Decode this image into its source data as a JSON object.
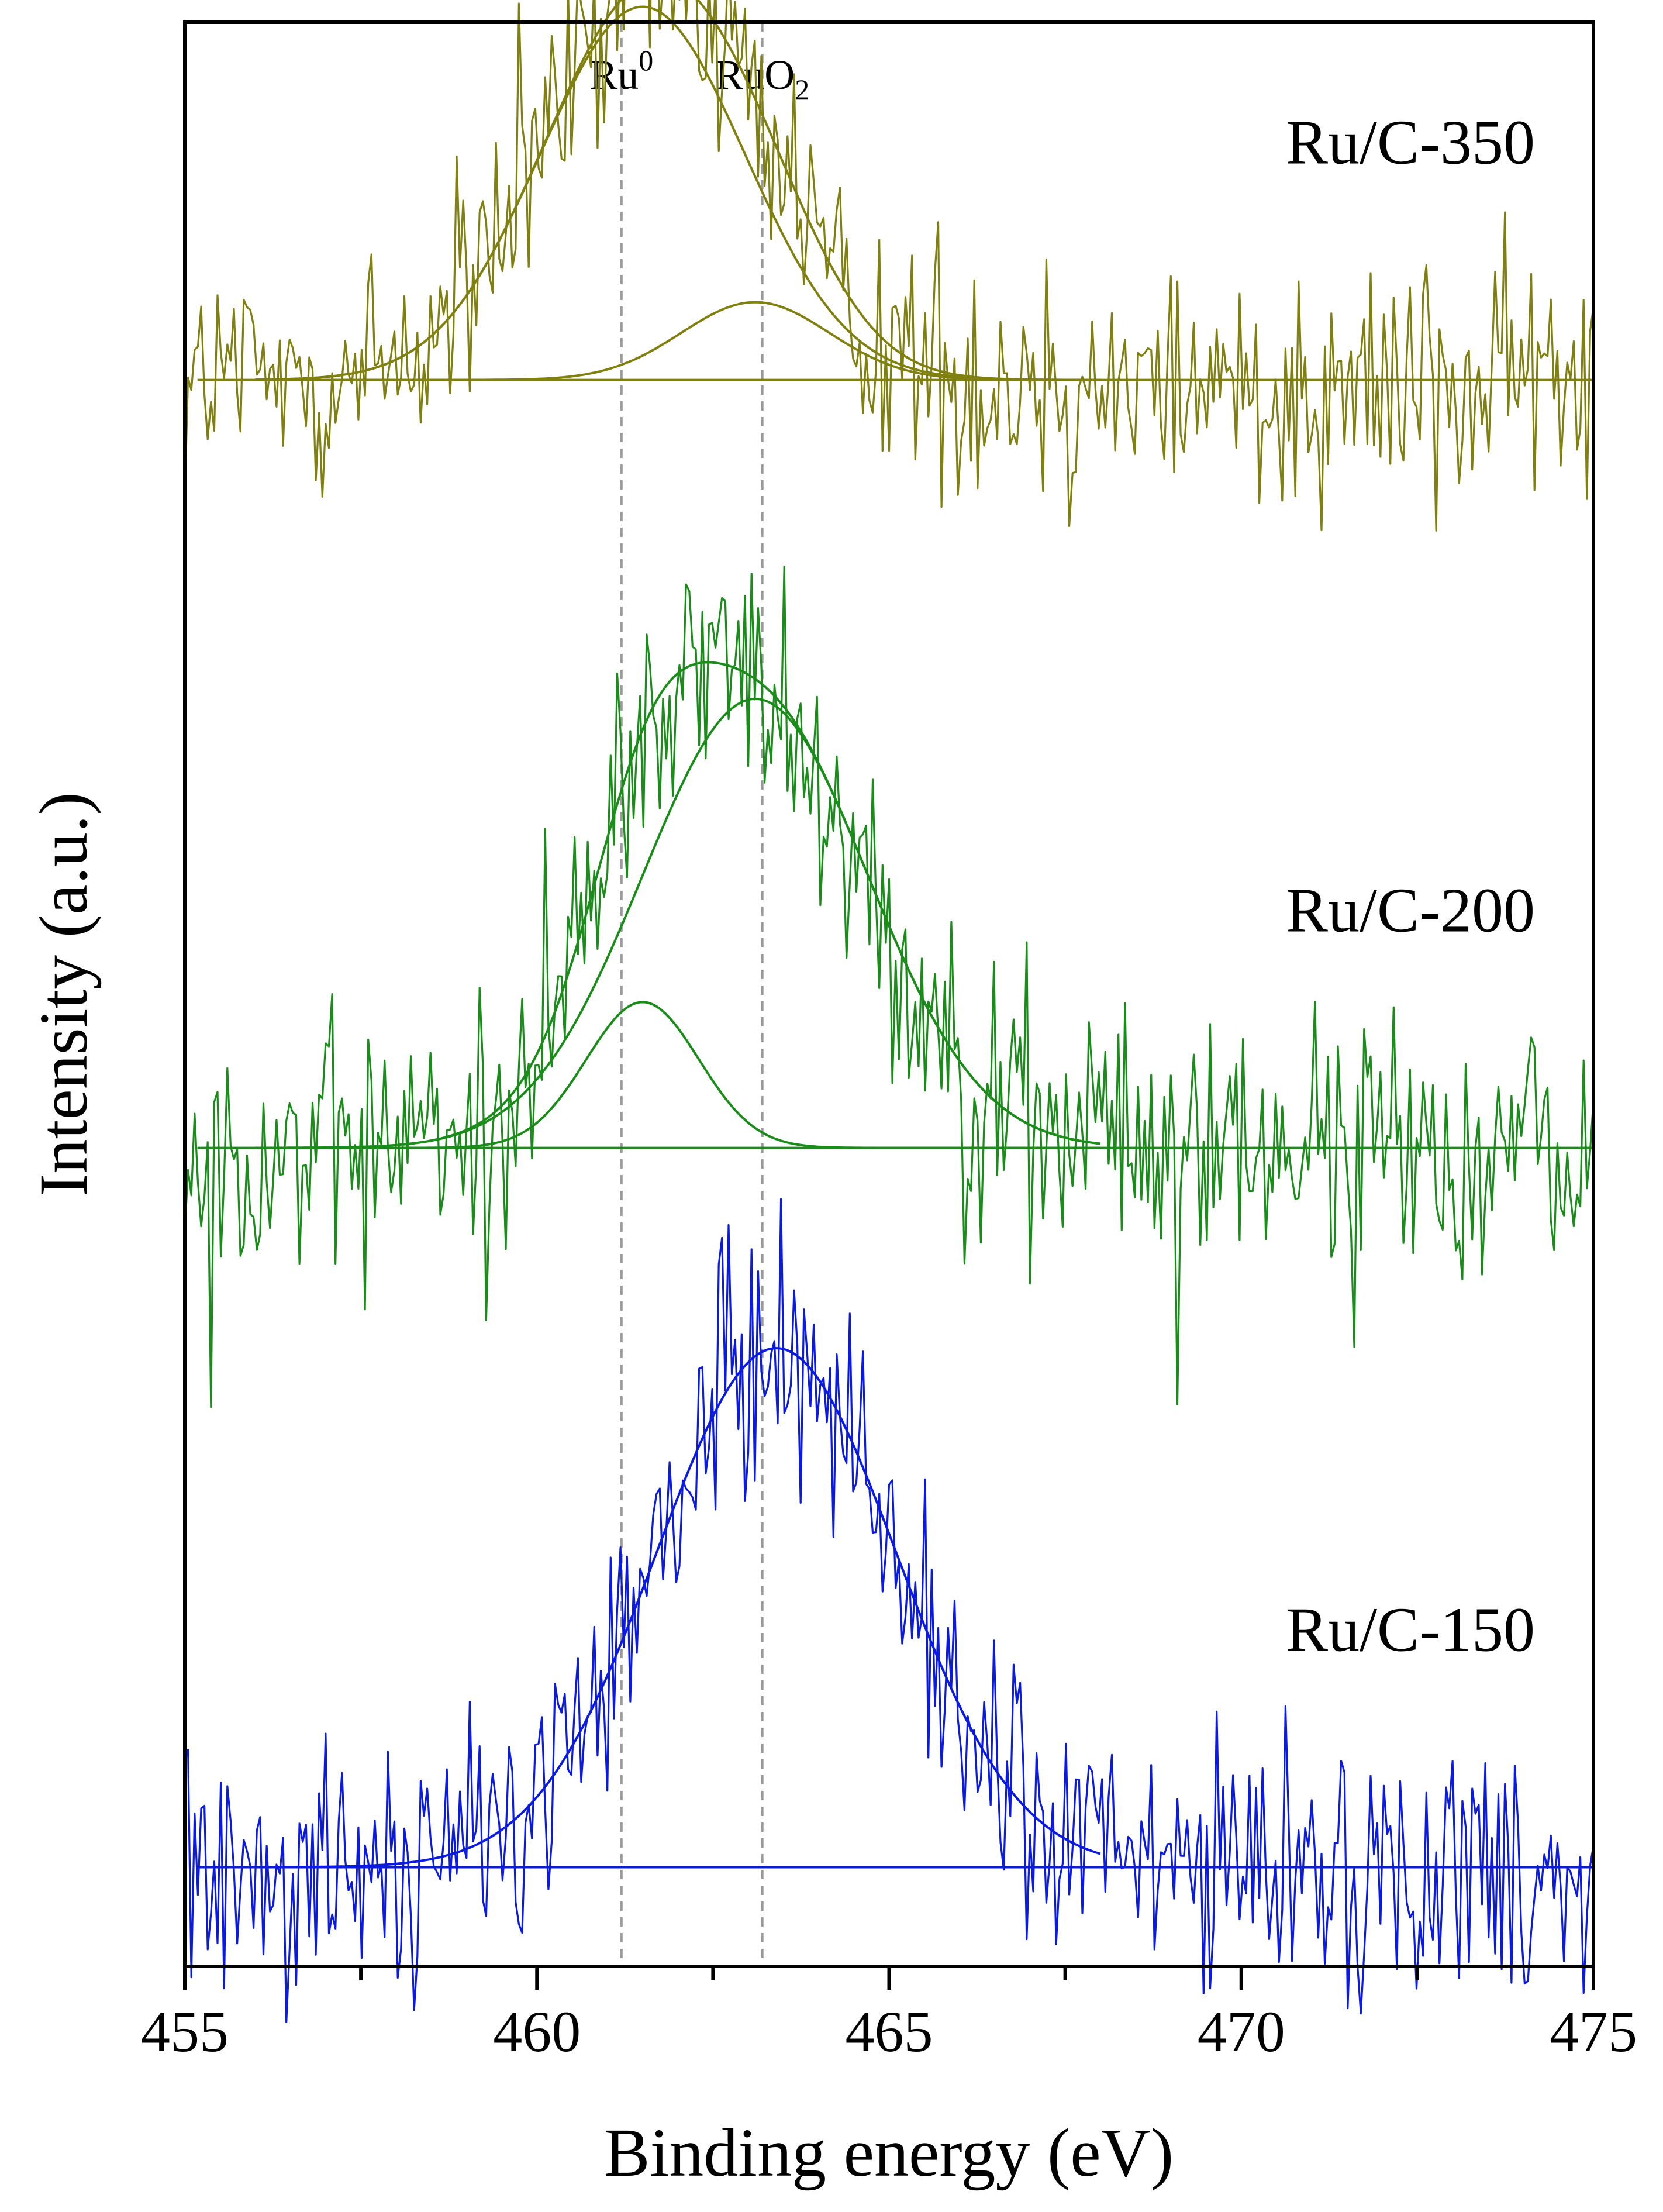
{
  "chart_data": {
    "type": "line",
    "title": "",
    "xlabel": "Binding energy (eV)",
    "ylabel": "Intensity (a.u.)",
    "xlim": [
      455,
      475
    ],
    "ylim": [
      0,
      1
    ],
    "x_ticks": [
      "455",
      "460",
      "465",
      "470",
      "475"
    ],
    "y_ticks": [],
    "grid": false,
    "legend": "none",
    "reference_lines": [
      {
        "name": "Ru0",
        "label_main": "Ru",
        "label_script": "0",
        "script_type": "sup",
        "x": 461.2
      },
      {
        "name": "RuO2",
        "label_main": "RuO",
        "label_script": "2",
        "script_type": "sub",
        "x": 463.2
      }
    ],
    "series": [
      {
        "name": "Ru/C-350",
        "label": "Ru/C-350",
        "color": "#808010",
        "offset": 0.816,
        "noise": 0.05,
        "peaks": [
          {
            "label": "Ru0 component",
            "center": 461.5,
            "height": 0.192,
            "sigma": 1.45
          },
          {
            "label": "RuO2 component",
            "center": 463.1,
            "height": 0.04,
            "sigma": 1.05
          }
        ]
      },
      {
        "name": "Ru/C-200",
        "label": "Ru/C-200",
        "color": "#1a8c1a",
        "offset": 0.421,
        "noise": 0.05,
        "peaks": [
          {
            "label": "Ru0 component",
            "center": 461.5,
            "height": 0.075,
            "sigma": 0.8
          },
          {
            "label": "RuO2 component",
            "center": 463.1,
            "height": 0.231,
            "sigma": 1.6
          }
        ]
      },
      {
        "name": "Ru/C-150",
        "label": "Ru/C-150",
        "color": "#0a1ae0",
        "offset": 0.051,
        "noise": 0.05,
        "peaks": [
          {
            "label": "single component",
            "center": 463.4,
            "height": 0.267,
            "sigma": 1.7
          }
        ]
      }
    ]
  }
}
